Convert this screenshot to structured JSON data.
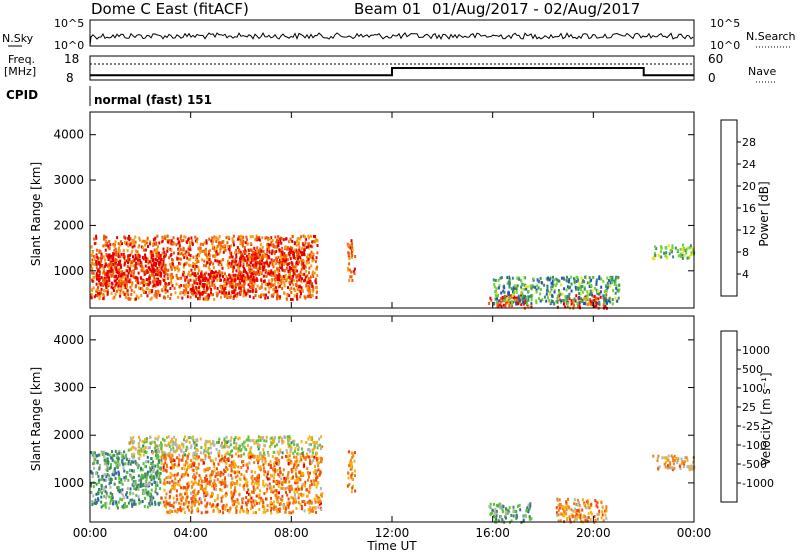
{
  "header": {
    "title": "Dome C East (fitACF)",
    "beam": "Beam 01",
    "date_range": "01/Aug/2017 - 02/Aug/2017"
  },
  "top_panels": {
    "nsky_label": "N.Sky",
    "nsky_ticks": [
      "10^5",
      "10^0"
    ],
    "nsearch_label": "N.Search",
    "nsearch_ticks": [
      "10^5",
      "10^0"
    ],
    "freq_label_1": "Freq.",
    "freq_label_2": "[MHz]",
    "freq_ticks": [
      "18",
      "8"
    ],
    "nave_label": "Nave",
    "nave_ticks": [
      "60",
      "0"
    ],
    "cpid_label": "CPID",
    "cpid_text": "normal (fast) 151"
  },
  "chart_data": [
    {
      "type": "heatmap",
      "name": "power",
      "ylabel": "Slant Range [km]",
      "xlabel": "",
      "yticks": [
        "1000",
        "2000",
        "3000",
        "4000"
      ],
      "ylim": [
        180,
        4500
      ],
      "xlim": [
        0,
        24
      ],
      "colorbar": {
        "label": "Power [dB]",
        "ticks": [
          "4",
          "8",
          "12",
          "16",
          "20",
          "24",
          "28"
        ],
        "range": [
          0,
          30
        ],
        "colors": [
          "#1a1aff",
          "#2a52b0",
          "#3d8c6e",
          "#6cd23a",
          "#e6e61e",
          "#f59b14",
          "#f25a0a",
          "#e60000"
        ]
      },
      "blobs": [
        {
          "t0": 0.0,
          "t1": 9.0,
          "r0": 400,
          "r1": 1800,
          "level": 0.8
        },
        {
          "t0": 0.2,
          "t1": 3.0,
          "r0": 700,
          "r1": 1400,
          "level": 0.95
        },
        {
          "t0": 4.0,
          "t1": 6.5,
          "r0": 500,
          "r1": 1000,
          "level": 0.95
        },
        {
          "t0": 5.5,
          "t1": 8.5,
          "r0": 800,
          "r1": 1500,
          "level": 0.9
        },
        {
          "t0": 10.2,
          "t1": 10.5,
          "r0": 800,
          "r1": 1700,
          "level": 0.8
        },
        {
          "t0": 15.8,
          "t1": 17.5,
          "r0": 200,
          "r1": 500,
          "level": 0.9
        },
        {
          "t0": 18.5,
          "t1": 20.5,
          "r0": 200,
          "r1": 500,
          "level": 0.85
        },
        {
          "t0": 22.3,
          "t1": 24.0,
          "r0": 1300,
          "r1": 1600,
          "level": 0.45
        },
        {
          "t0": 16.0,
          "t1": 21.0,
          "r0": 300,
          "r1": 900,
          "level": 0.35
        }
      ]
    },
    {
      "type": "heatmap",
      "name": "velocity",
      "ylabel": "Slant Range [km]",
      "xlabel": "Time UT",
      "xticks": [
        "00:00",
        "04:00",
        "08:00",
        "12:00",
        "16:00",
        "20:00",
        "00:00"
      ],
      "yticks": [
        "1000",
        "2000",
        "3000",
        "4000"
      ],
      "ylim": [
        180,
        4500
      ],
      "xlim": [
        0,
        24
      ],
      "colorbar": {
        "label": "Velocity [m s⁻¹]",
        "ticks": [
          "1000",
          "500",
          "100",
          "25",
          "-25",
          "-100",
          "-500",
          "-1000"
        ],
        "colors": [
          "#2244cc",
          "#2f6a9a",
          "#3f8a5a",
          "#5cc23a",
          "#b4b4b4",
          "#f5b414",
          "#f57f14",
          "#f04a0a",
          "#e60000"
        ]
      },
      "blobs": [
        {
          "t0": 0.0,
          "t1": 2.8,
          "r0": 500,
          "r1": 1700,
          "level": 0.33
        },
        {
          "t0": 1.5,
          "t1": 9.2,
          "r0": 1600,
          "r1": 2000,
          "level": 0.5
        },
        {
          "t0": 2.8,
          "t1": 9.2,
          "r0": 400,
          "r1": 1600,
          "level": 0.72
        },
        {
          "t0": 10.2,
          "t1": 10.5,
          "r0": 800,
          "r1": 1700,
          "level": 0.72
        },
        {
          "t0": 15.8,
          "t1": 17.5,
          "r0": 200,
          "r1": 600,
          "level": 0.35
        },
        {
          "t0": 18.5,
          "t1": 20.5,
          "r0": 200,
          "r1": 700,
          "level": 0.7
        },
        {
          "t0": 22.3,
          "t1": 24.0,
          "r0": 1300,
          "r1": 1600,
          "level": 0.62
        }
      ]
    }
  ],
  "frequency_mhz": {
    "t": [
      0,
      12,
      12,
      22,
      22,
      24
    ],
    "f": [
      10,
      10,
      13,
      13,
      10,
      10
    ]
  },
  "nave": {
    "value": 40
  }
}
